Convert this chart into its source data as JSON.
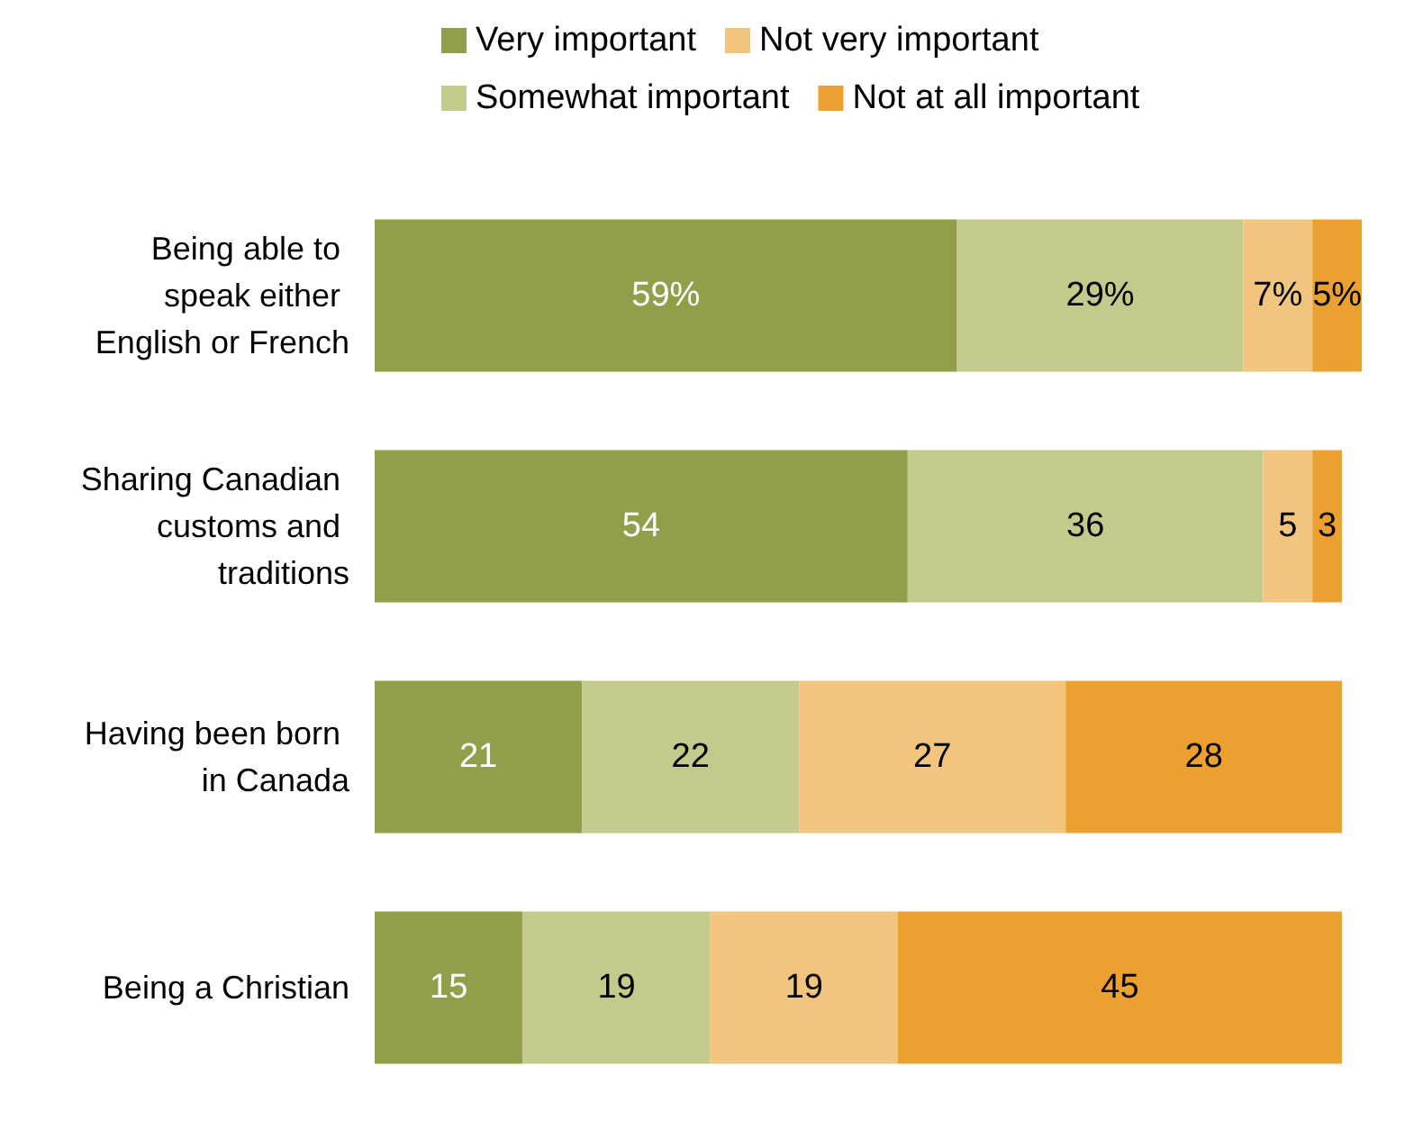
{
  "chart_data": {
    "type": "bar",
    "orientation": "horizontal",
    "stacked": true,
    "legend": "top",
    "tick_labels": "y",
    "categories": [
      "Being able to speak either English or French",
      "Sharing Canadian customs and traditions",
      "Having been born in Canada",
      "Being a Christian"
    ],
    "series": [
      {
        "name": "Very important",
        "color": "#939e4a",
        "values": [
          59,
          54,
          21,
          15
        ],
        "value_labels": [
          "59%",
          "54",
          "21",
          "15"
        ]
      },
      {
        "name": "Somewhat important",
        "color": "#c4ca8c",
        "values": [
          29,
          36,
          22,
          19
        ],
        "value_labels": [
          "29%",
          "36",
          "22",
          "19"
        ]
      },
      {
        "name": "Not very important",
        "color": "#f2c57f",
        "values": [
          7,
          5,
          27,
          19
        ],
        "value_labels": [
          "7%",
          "5",
          "27",
          "19"
        ]
      },
      {
        "name": "Not at all important",
        "color": "#eba030",
        "values": [
          5,
          3,
          28,
          45
        ],
        "value_labels": [
          "5%",
          "3",
          "28",
          "45"
        ]
      }
    ]
  }
}
